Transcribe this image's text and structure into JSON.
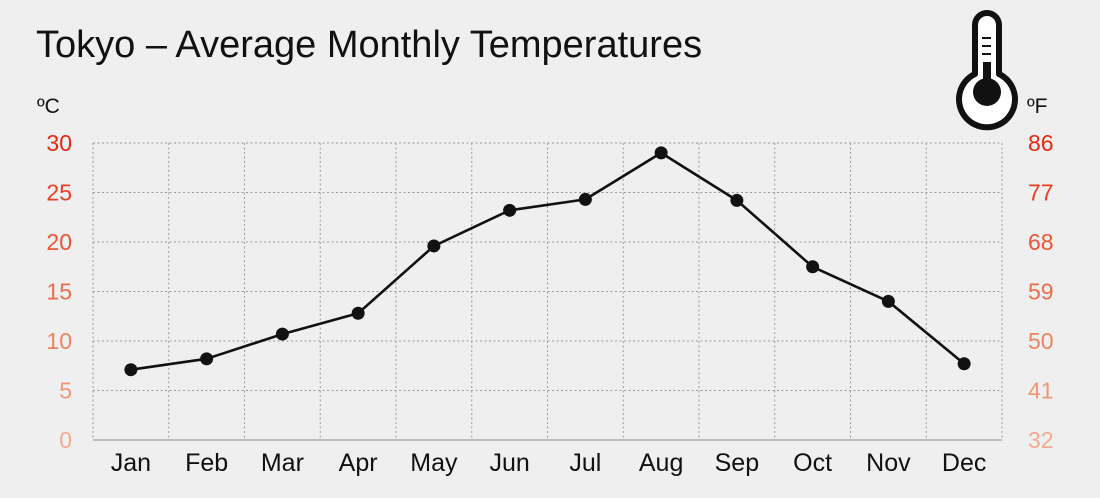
{
  "chart_data": {
    "type": "line",
    "title": "Tokyo – Average Monthly Temperatures",
    "y_left_unit": "ºC",
    "y_right_unit": "ºF",
    "categories": [
      "Jan",
      "Feb",
      "Mar",
      "Apr",
      "May",
      "Jun",
      "Jul",
      "Aug",
      "Sep",
      "Oct",
      "Nov",
      "Dec"
    ],
    "series": [
      {
        "values": [
          7.1,
          8.2,
          10.7,
          12.8,
          19.6,
          23.2,
          24.3,
          29.0,
          24.2,
          17.5,
          14.0,
          7.7
        ]
      }
    ],
    "ylim": [
      0,
      30
    ],
    "y_left_ticks": [
      "0",
      "5",
      "10",
      "15",
      "20",
      "25",
      "30"
    ],
    "y_right_ticks": [
      "32",
      "41",
      "50",
      "59",
      "68",
      "77",
      "86"
    ],
    "tick_colors": [
      "#f2a98e",
      "#f09677",
      "#ef8360",
      "#ee6c49",
      "#ec5533",
      "#ea3e1f",
      "#e8280f"
    ],
    "line_color": "#111111",
    "grid": true,
    "icon": "thermometer-icon"
  }
}
